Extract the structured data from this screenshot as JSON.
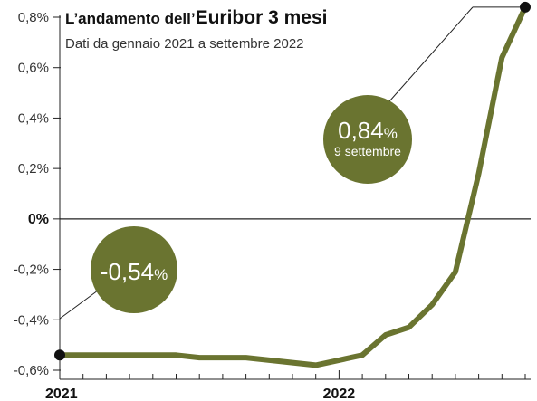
{
  "chart_data": {
    "type": "line",
    "title_prefix": "L’andamento dell’",
    "title_main": "Euribor 3 mesi",
    "subtitle": "Dati da gennaio 2021 a settembre 2022",
    "xlabel": "",
    "ylabel": "",
    "ylim": [
      -0.6,
      0.8
    ],
    "y_ticks": [
      {
        "value": 0.8,
        "label": "0,8%"
      },
      {
        "value": 0.6,
        "label": "0,6%"
      },
      {
        "value": 0.4,
        "label": "0,4%"
      },
      {
        "value": 0.2,
        "label": "0,2%"
      },
      {
        "value": 0.0,
        "label": "0%"
      },
      {
        "value": -0.2,
        "label": "-0,2%"
      },
      {
        "value": -0.4,
        "label": "-0,4%"
      },
      {
        "value": -0.6,
        "label": "-0,6%"
      }
    ],
    "x_labels": [
      "2021",
      "2022"
    ],
    "grid": false,
    "line_color": "#6a7430",
    "series": [
      {
        "x": [
          "2021-01",
          "2021-02",
          "2021-03",
          "2021-04",
          "2021-05",
          "2021-06",
          "2021-07",
          "2021-08",
          "2021-09",
          "2021-10",
          "2021-11",
          "2021-12",
          "2022-01",
          "2022-02",
          "2022-03",
          "2022-04",
          "2022-05",
          "2022-06",
          "2022-07",
          "2022-08",
          "2022-09"
        ],
        "values": [
          -0.54,
          -0.54,
          -0.54,
          -0.54,
          -0.54,
          -0.54,
          -0.55,
          -0.55,
          -0.55,
          -0.56,
          -0.57,
          -0.58,
          -0.56,
          -0.54,
          -0.46,
          -0.43,
          -0.34,
          -0.21,
          0.18,
          0.64,
          0.84
        ]
      }
    ],
    "annotations": [
      {
        "value_main": "-0,54",
        "unit": "%",
        "sublabel": ""
      },
      {
        "value_main": "0,84",
        "unit": "%",
        "sublabel": "9 settembre"
      }
    ]
  }
}
